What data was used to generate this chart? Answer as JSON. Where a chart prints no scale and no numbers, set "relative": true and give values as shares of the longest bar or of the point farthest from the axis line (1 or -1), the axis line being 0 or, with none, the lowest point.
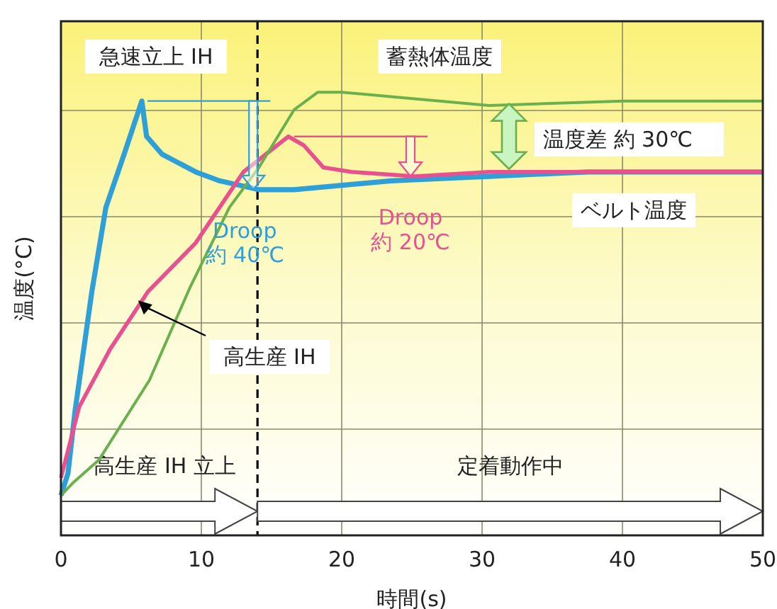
{
  "chart_data": {
    "type": "line",
    "relative": true,
    "xlabel": "時間(s)",
    "ylabel": "温度(°C)",
    "xlim": [
      0,
      50
    ],
    "xticks": [
      0,
      10,
      20,
      30,
      40,
      50
    ],
    "grid": true,
    "tick_labels": "x",
    "series": [
      {
        "name": "急速立上 IH",
        "color": "#2f9fd8",
        "x": [
          0,
          0.5,
          1,
          2.2,
          3.2,
          4.5,
          5.76,
          6.1,
          7.2,
          9.6,
          11.3,
          14.1,
          16.6,
          23.5,
          30.5,
          37.5,
          44.4,
          50
        ],
        "values": [
          0.09,
          0.14,
          0.28,
          0.55,
          0.74,
          0.86,
          0.98,
          0.9,
          0.86,
          0.82,
          0.8,
          0.78,
          0.78,
          0.8,
          0.81,
          0.82,
          0.82,
          0.82
        ]
      },
      {
        "color": "#e8508f",
        "x": [
          0,
          1.3,
          3.5,
          6.2,
          9.6,
          13,
          16.2,
          17.3,
          18.7,
          20.7,
          25.2,
          30.5,
          40,
          50
        ],
        "values": [
          0.13,
          0.29,
          0.42,
          0.55,
          0.66,
          0.82,
          0.9,
          0.88,
          0.83,
          0.82,
          0.81,
          0.82,
          0.82,
          0.82
        ]
      },
      {
        "name": "蓄熱体温度",
        "color": "#6ab04c",
        "x": [
          0,
          0.9,
          2.7,
          6.3,
          9.2,
          12,
          14.1,
          16.6,
          18.3,
          20,
          23.5,
          27,
          30.5,
          40,
          50
        ],
        "values": [
          0.09,
          0.12,
          0.17,
          0.35,
          0.56,
          0.74,
          0.83,
          0.96,
          1,
          1,
          0.99,
          0.98,
          0.97,
          0.98,
          0.98
        ]
      }
    ],
    "ref_lines": [
      {
        "axis": "x",
        "value": 14,
        "line_style": "dashed",
        "color": "#000000"
      }
    ],
    "annotations": [
      {
        "text": "Droop\n約 40℃",
        "x": 13.7,
        "y": 0.78
      },
      {
        "text": "Droop\n約 20℃",
        "x": 24.9,
        "y": 0.81
      },
      "温度差  約 30℃",
      {
        "text": "ベルト温度",
        "x": 40,
        "y": 0.82
      },
      {
        "text": "高生産 IH",
        "x": 5.5,
        "y": 0.53
      },
      "高生産 IH 立上",
      "定着動作中"
    ]
  }
}
